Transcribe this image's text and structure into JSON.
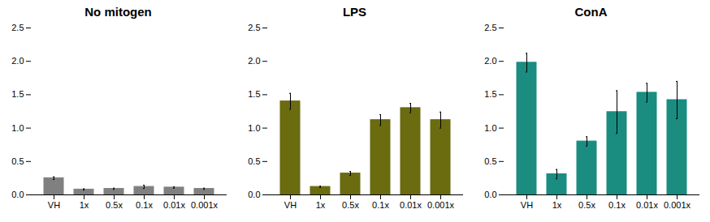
{
  "chart_data": [
    {
      "type": "bar",
      "title": "No mitogen",
      "color": "#808080",
      "categories": [
        "VH",
        "1x",
        "0.5x",
        "0.1x",
        "0.01x",
        "0.001x"
      ],
      "values": [
        0.25,
        0.08,
        0.09,
        0.12,
        0.11,
        0.09
      ],
      "errors": [
        0.02,
        0.01,
        0.01,
        0.025,
        0.01,
        0.01
      ],
      "ylim": [
        0,
        2.5
      ],
      "yticks": [
        {
          "value": 0,
          "label": "0.0"
        },
        0.5,
        {
          "value": 1,
          "label": "1.0"
        },
        1.5,
        {
          "value": 2,
          "label": "2.0"
        },
        2.5
      ],
      "grid": false
    },
    {
      "type": "bar",
      "title": "LPS",
      "color": "#6b6b10",
      "categories": [
        "VH",
        "1x",
        "0.5x",
        "0.1x",
        "0.01x",
        "0.001x"
      ],
      "values": [
        1.4,
        0.12,
        0.32,
        1.12,
        1.3,
        1.12
      ],
      "errors": [
        0.12,
        0.01,
        0.03,
        0.08,
        0.07,
        0.12
      ],
      "ylim": [
        0,
        2.5
      ],
      "yticks": [
        {
          "value": 0,
          "label": "0.0"
        },
        0.5,
        {
          "value": 1,
          "label": "1.0"
        },
        1.5,
        {
          "value": 2,
          "label": "2.0"
        },
        2.5
      ],
      "grid": false
    },
    {
      "type": "bar",
      "title": "ConA",
      "color": "#1a8c80",
      "categories": [
        "VH",
        "1x",
        "0.5x",
        "0.1x",
        "0.01x",
        "0.001x"
      ],
      "values": [
        1.98,
        0.31,
        0.8,
        1.24,
        1.53,
        1.42
      ],
      "errors": [
        0.14,
        0.07,
        0.07,
        0.32,
        0.14,
        0.28
      ],
      "ylim": [
        0,
        2.5
      ],
      "yticks": [
        {
          "value": 0,
          "label": "0.0"
        },
        0.5,
        {
          "value": 1,
          "label": "1.0"
        },
        1.5,
        {
          "value": 2,
          "label": "2.0"
        },
        2.5
      ],
      "grid": false
    }
  ]
}
